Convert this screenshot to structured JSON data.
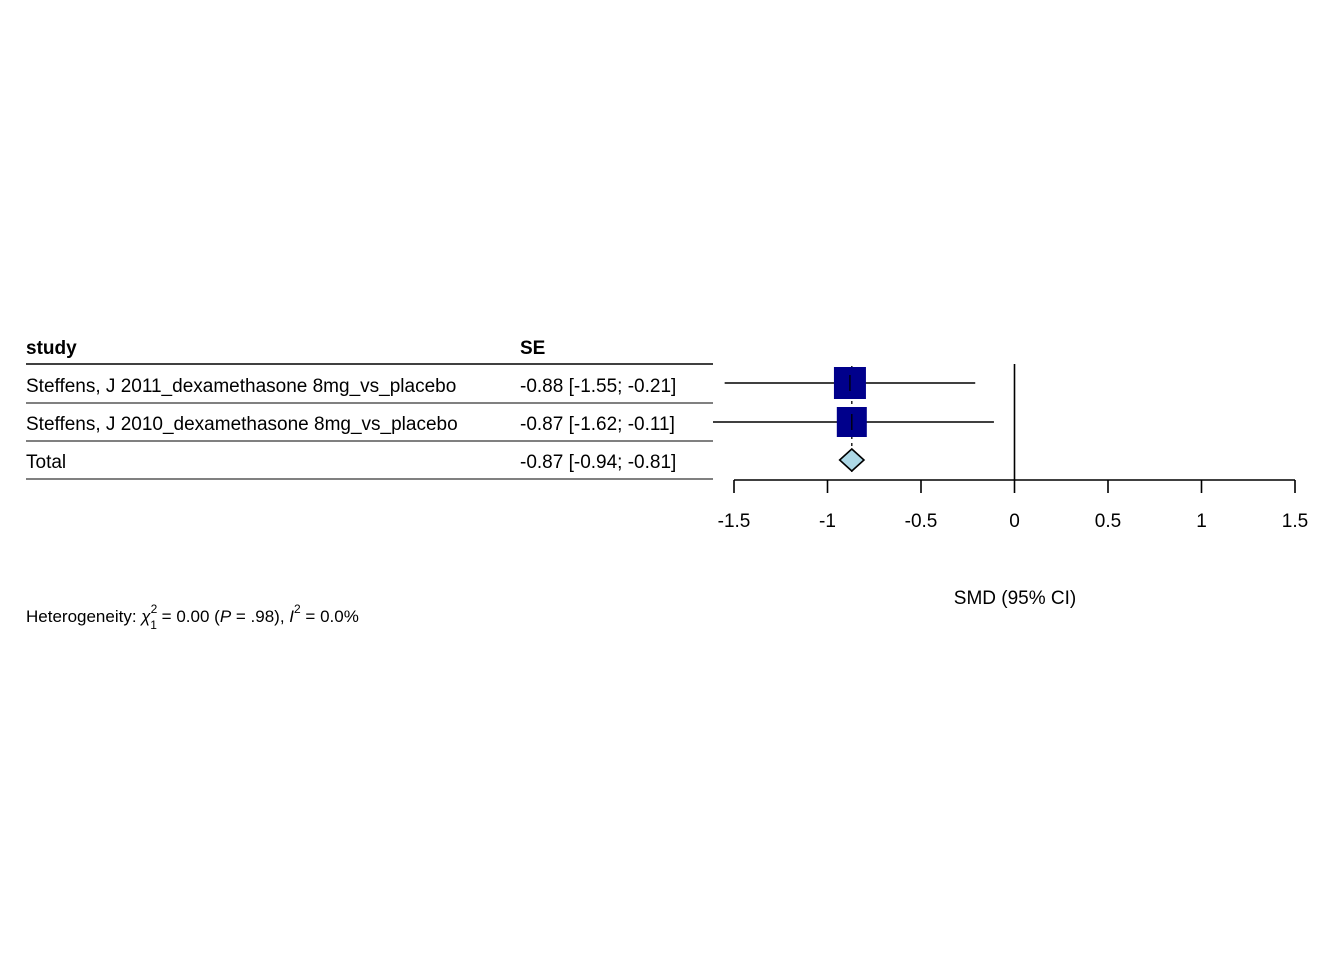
{
  "chart_data": {
    "type": "forest",
    "columns": {
      "study": "study",
      "effect": "SE"
    },
    "studies": [
      {
        "label": "Steffens, J 2011_dexamethasone 8mg_vs_placebo",
        "estimate": -0.88,
        "ci_low": -1.55,
        "ci_high": -0.21,
        "text": "-0.88 [-1.55; -0.21]"
      },
      {
        "label": "Steffens, J 2010_dexamethasone 8mg_vs_placebo",
        "estimate": -0.87,
        "ci_low": -1.62,
        "ci_high": -0.11,
        "text": "-0.87 [-1.62; -0.11]"
      }
    ],
    "total": {
      "label": "Total",
      "estimate": -0.87,
      "ci_low": -0.94,
      "ci_high": -0.81,
      "text": "-0.87 [-0.94; -0.81]"
    },
    "x_ticks": [
      -1.5,
      -1,
      -0.5,
      0,
      0.5,
      1,
      1.5
    ],
    "x_tick_labels": [
      "-1.5",
      "-1",
      "-0.5",
      "0",
      "0.5",
      "1",
      "1.5"
    ],
    "xlim": [
      -1.5,
      1.5
    ],
    "xlabel": "SMD (95% CI)",
    "heterogeneity": {
      "prefix": "Heterogeneity: ",
      "chi_symbol": "χ",
      "chi_sup": "2",
      "chi_sub": "1",
      "chi_value": " = 0.00 (",
      "p_symbol": "P",
      "p_value": " = .98), ",
      "i_symbol": "I",
      "i_sup": "2",
      "i_value": " = 0.0%"
    },
    "colors": {
      "square": "#00008B",
      "diamond": "#ADD8E6",
      "lines": "#000000"
    }
  }
}
